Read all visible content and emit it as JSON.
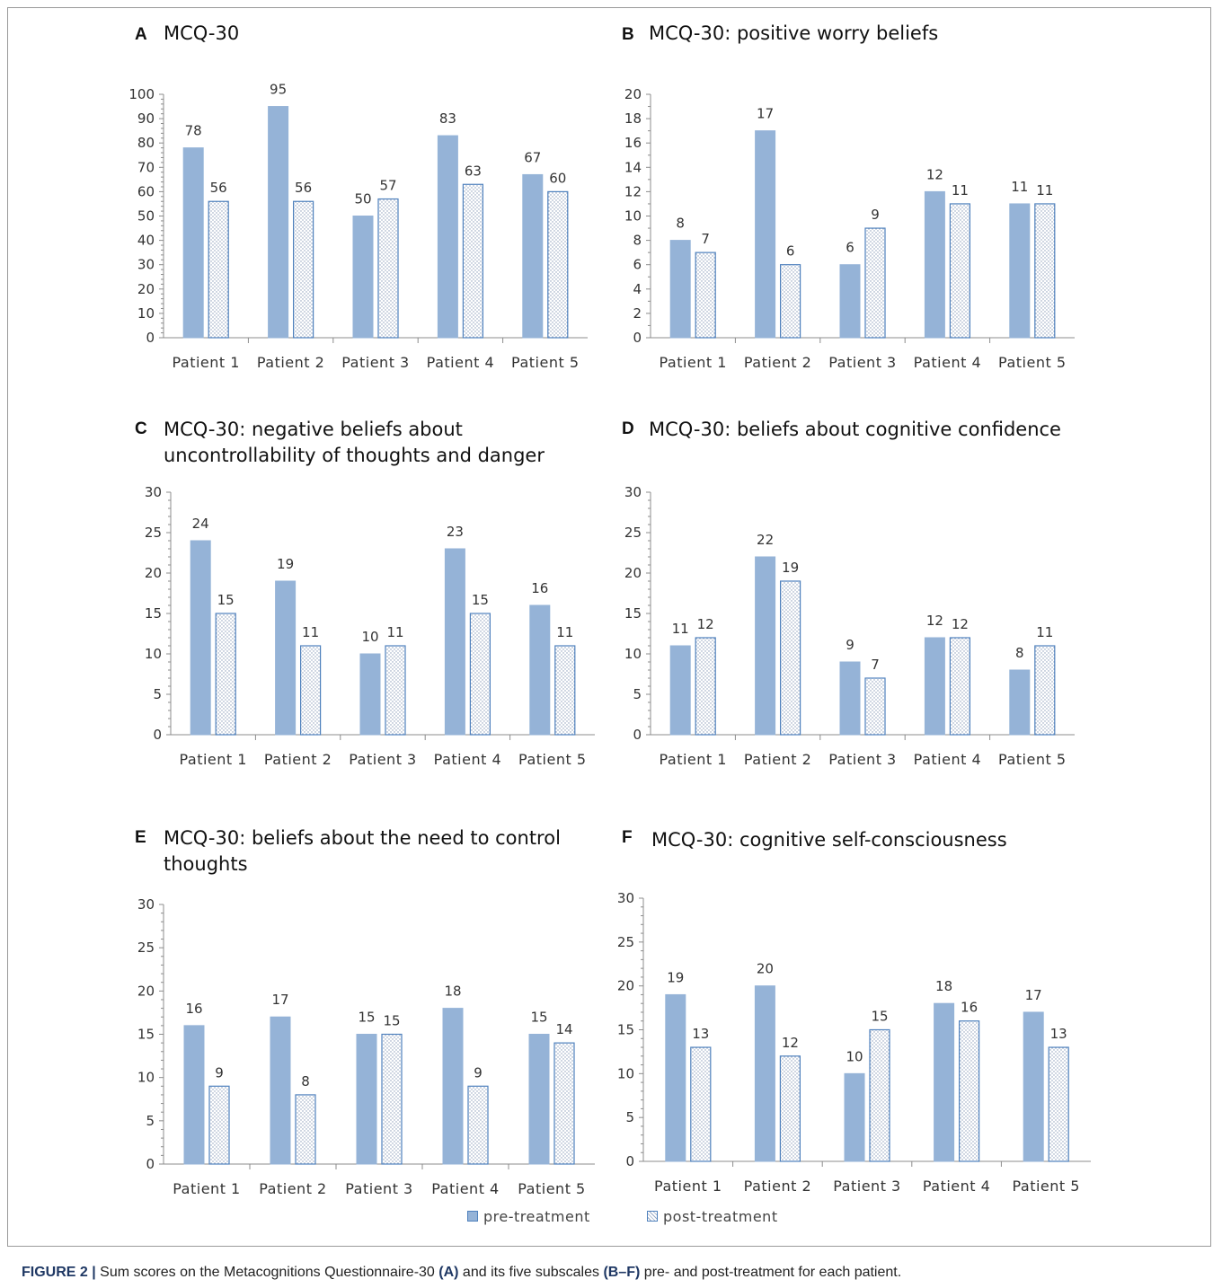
{
  "colors": {
    "pre": "#95b3d7",
    "pre_stroke": "#4f81bd",
    "post_stroke": "#4f81bd",
    "axis": "#8c8c8c",
    "text": "#333333"
  },
  "legend": {
    "pre": "pre-treatment",
    "post": "post-treatment"
  },
  "caption": {
    "prefix": "FIGURE 2 |",
    "text1": " Sum scores on the Metacognitions Questionnaire-30 ",
    "ref1": "(A)",
    "text2": " and its five subscales ",
    "ref2": "(B–F)",
    "text3": " pre- and post-treatment for each patient."
  },
  "chart_data": [
    {
      "panel": "A",
      "title": [
        "MCQ-30"
      ],
      "type": "bar",
      "categories": [
        "Patient 1",
        "Patient 2",
        "Patient 3",
        "Patient 4",
        "Patient 5"
      ],
      "ylim": [
        0,
        100
      ],
      "yticks": [
        0,
        10,
        20,
        30,
        40,
        50,
        60,
        70,
        80,
        90,
        100
      ],
      "series": [
        {
          "name": "pre-treatment",
          "values": [
            78,
            95,
            50,
            83,
            67
          ]
        },
        {
          "name": "post-treatment",
          "values": [
            56,
            56,
            57,
            63,
            60
          ]
        }
      ]
    },
    {
      "panel": "B",
      "title": [
        "MCQ-30: positive worry beliefs"
      ],
      "type": "bar",
      "categories": [
        "Patient 1",
        "Patient 2",
        "Patient 3",
        "Patient 4",
        "Patient 5"
      ],
      "ylim": [
        0,
        20
      ],
      "yticks": [
        0,
        2,
        4,
        6,
        8,
        10,
        12,
        14,
        16,
        18,
        20
      ],
      "series": [
        {
          "name": "pre-treatment",
          "values": [
            8,
            17,
            6,
            12,
            11
          ]
        },
        {
          "name": "post-treatment",
          "values": [
            7,
            6,
            9,
            11,
            11
          ]
        }
      ]
    },
    {
      "panel": "C",
      "title": [
        "MCQ-30: negative beliefs about",
        "uncontrollability of thoughts and danger"
      ],
      "type": "bar",
      "categories": [
        "Patient 1",
        "Patient 2",
        "Patient 3",
        "Patient 4",
        "Patient 5"
      ],
      "ylim": [
        0,
        30
      ],
      "yticks": [
        0,
        5,
        10,
        15,
        20,
        25,
        30
      ],
      "series": [
        {
          "name": "pre-treatment",
          "values": [
            24,
            19,
            10,
            23,
            16
          ]
        },
        {
          "name": "post-treatment",
          "values": [
            15,
            11,
            11,
            15,
            11
          ]
        }
      ]
    },
    {
      "panel": "D",
      "title": [
        "MCQ-30: beliefs about cognitive confidence"
      ],
      "type": "bar",
      "categories": [
        "Patient 1",
        "Patient 2",
        "Patient 3",
        "Patient 4",
        "Patient 5"
      ],
      "ylim": [
        0,
        30
      ],
      "yticks": [
        0,
        5,
        10,
        15,
        20,
        25,
        30
      ],
      "series": [
        {
          "name": "pre-treatment",
          "values": [
            11,
            22,
            9,
            12,
            8
          ]
        },
        {
          "name": "post-treatment",
          "values": [
            12,
            19,
            7,
            12,
            11
          ]
        }
      ]
    },
    {
      "panel": "E",
      "title": [
        "MCQ-30: beliefs about the need to control",
        "thoughts"
      ],
      "type": "bar",
      "categories": [
        "Patient 1",
        "Patient 2",
        "Patient 3",
        "Patient 4",
        "Patient 5"
      ],
      "ylim": [
        0,
        30
      ],
      "yticks": [
        0,
        5,
        10,
        15,
        20,
        25,
        30
      ],
      "series": [
        {
          "name": "pre-treatment",
          "values": [
            16,
            17,
            15,
            18,
            15
          ]
        },
        {
          "name": "post-treatment",
          "values": [
            9,
            8,
            15,
            9,
            14
          ]
        }
      ]
    },
    {
      "panel": "F",
      "title": [
        "MCQ-30: cognitive self-consciousness"
      ],
      "type": "bar",
      "categories": [
        "Patient 1",
        "Patient 2",
        "Patient 3",
        "Patient 4",
        "Patient 5"
      ],
      "ylim": [
        0,
        30
      ],
      "yticks": [
        0,
        5,
        10,
        15,
        20,
        25,
        30
      ],
      "series": [
        {
          "name": "pre-treatment",
          "values": [
            19,
            20,
            10,
            18,
            17
          ]
        },
        {
          "name": "post-treatment",
          "values": [
            13,
            12,
            15,
            16,
            13
          ]
        }
      ]
    }
  ]
}
